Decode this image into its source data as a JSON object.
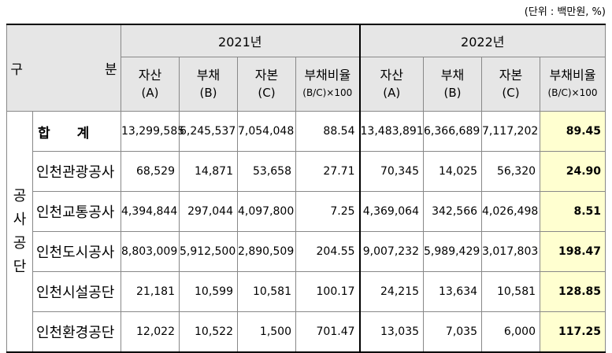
{
  "unit_note": "(단위 : 백만원, %)",
  "header": {
    "category_a": "구",
    "category_b": "분",
    "year1": "2021년",
    "year2": "2022년",
    "columns": [
      {
        "label": "자산",
        "sub": "(A)"
      },
      {
        "label": "부채",
        "sub": "(B)"
      },
      {
        "label": "자본",
        "sub": "(C)"
      },
      {
        "label": "부채비율",
        "sub": "(B/C)×100"
      }
    ]
  },
  "group_label": [
    "공",
    "사",
    "공",
    "단"
  ],
  "total": {
    "label_a": "합",
    "label_b": "계",
    "y2021": [
      "13,299,585",
      "6,245,537",
      "7,054,048",
      "88.54"
    ],
    "y2022": [
      "13,483,891",
      "6,366,689",
      "7,117,202",
      "89.45"
    ]
  },
  "rows": [
    {
      "name": "인천관광공사",
      "y2021": [
        "68,529",
        "14,871",
        "53,658",
        "27.71"
      ],
      "y2022": [
        "70,345",
        "14,025",
        "56,320",
        "24.90"
      ]
    },
    {
      "name": "인천교통공사",
      "y2021": [
        "4,394,844",
        "297,044",
        "4,097,800",
        "7.25"
      ],
      "y2022": [
        "4,369,064",
        "342,566",
        "4,026,498",
        "8.51"
      ]
    },
    {
      "name": "인천도시공사",
      "y2021": [
        "8,803,009",
        "5,912,500",
        "2,890,509",
        "204.55"
      ],
      "y2022": [
        "9,007,232",
        "5,989,429",
        "3,017,803",
        "198.47"
      ]
    },
    {
      "name": "인천시설공단",
      "y2021": [
        "21,181",
        "10,599",
        "10,581",
        "100.17"
      ],
      "y2022": [
        "24,215",
        "13,634",
        "10,581",
        "128.85"
      ]
    },
    {
      "name": "인천환경공단",
      "y2021": [
        "12,022",
        "10,522",
        "1,500",
        "701.47"
      ],
      "y2022": [
        "13,035",
        "7,035",
        "6,000",
        "117.25"
      ]
    }
  ],
  "colors": {
    "header_bg": "#e6e6e6",
    "highlight_bg": "#ffffd0"
  }
}
